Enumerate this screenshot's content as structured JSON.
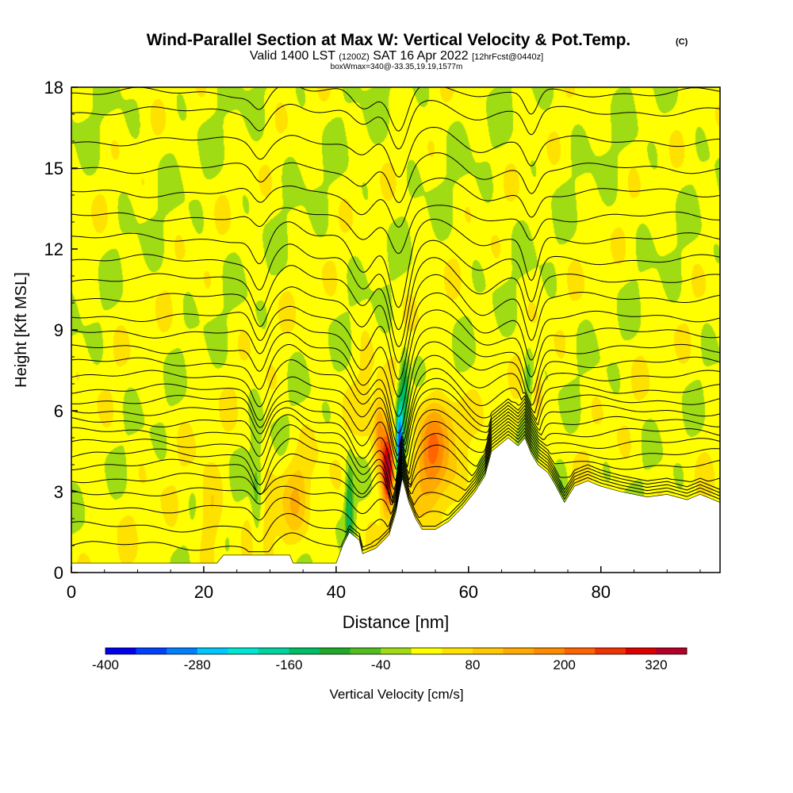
{
  "header": {
    "title": "Wind-Parallel Section at Max W: Vertical Velocity & Pot.Temp.",
    "copyright": "(C)",
    "valid_a": "Valid 1400 LST",
    "valid_b": "(1200Z)",
    "valid_c": "SAT 16 Apr 2022",
    "valid_d": "[12hrFcst@0440z]",
    "subtitle": "boxWmax=340@-33.35,19.19,1577m"
  },
  "chart_data": {
    "type": "heatmap",
    "xlabel": "Distance [nm]",
    "ylabel": "Height [Kft MSL]",
    "xlim": [
      0,
      98
    ],
    "ylim": [
      0,
      18
    ],
    "x_ticks": [
      "0",
      "20",
      "40",
      "60",
      "80"
    ],
    "x_tick_values": [
      0,
      20,
      40,
      60,
      80
    ],
    "y_ticks": [
      "0",
      "3",
      "6",
      "9",
      "12",
      "15",
      "18"
    ],
    "y_tick_values": [
      0,
      3,
      6,
      9,
      12,
      15,
      18
    ],
    "grid": false,
    "colorbar": {
      "label": "Vertical Velocity [cm/s]",
      "range": [
        -400,
        360
      ],
      "step": 40,
      "tick_labels": [
        "-400",
        "-280",
        "-160",
        "-40",
        "80",
        "200",
        "320"
      ],
      "tick_values": [
        -400,
        -280,
        -160,
        -40,
        80,
        200,
        320
      ],
      "colors": [
        "#0000ee",
        "#0040ff",
        "#0080ff",
        "#00c8ff",
        "#00e6d2",
        "#00d2a0",
        "#00be64",
        "#1eaa28",
        "#50be1e",
        "#a0dc14",
        "#ffff00",
        "#ffe100",
        "#ffc800",
        "#ffaa00",
        "#ff8c00",
        "#ff6400",
        "#f03200",
        "#dc0000",
        "#b40028"
      ]
    },
    "terrain_kft": [
      [
        0,
        0.35
      ],
      [
        15,
        0.35
      ],
      [
        22,
        0.35
      ],
      [
        23,
        0.65
      ],
      [
        33,
        0.65
      ],
      [
        33.5,
        0.35
      ],
      [
        40,
        0.35
      ],
      [
        41,
        1.0
      ],
      [
        42,
        1.5
      ],
      [
        43.5,
        1.2
      ],
      [
        44,
        0.7
      ],
      [
        46,
        0.9
      ],
      [
        48,
        1.4
      ],
      [
        49,
        2.2
      ],
      [
        50,
        3.5
      ],
      [
        51,
        2.6
      ],
      [
        52,
        2.0
      ],
      [
        53,
        1.6
      ],
      [
        55,
        1.6
      ],
      [
        57,
        1.9
      ],
      [
        59,
        2.4
      ],
      [
        61,
        3.0
      ],
      [
        62.5,
        3.6
      ],
      [
        63.5,
        4.5
      ],
      [
        66,
        5.0
      ],
      [
        67.5,
        4.7
      ],
      [
        68.5,
        5.0
      ],
      [
        69.5,
        4.4
      ],
      [
        70.5,
        4.0
      ],
      [
        72,
        3.7
      ],
      [
        73,
        3.3
      ],
      [
        74.5,
        2.6
      ],
      [
        76,
        3.2
      ],
      [
        78,
        3.4
      ],
      [
        80,
        3.2
      ],
      [
        83,
        3.0
      ],
      [
        87,
        2.8
      ],
      [
        90,
        2.9
      ],
      [
        93,
        2.7
      ],
      [
        95,
        2.9
      ],
      [
        98,
        2.6
      ]
    ],
    "updrafts": [
      {
        "x": 47.8,
        "z": 3.8,
        "sx": 0.9,
        "sz": 1.5,
        "w": 340
      },
      {
        "x": 46.5,
        "z": 5.2,
        "sx": 0.8,
        "sz": 1.4,
        "w": 140
      },
      {
        "x": 54.5,
        "z": 4.2,
        "sx": 2.6,
        "sz": 1.8,
        "w": 170
      },
      {
        "x": 56.5,
        "z": 5.6,
        "sx": 2.8,
        "sz": 1.1,
        "w": 70
      },
      {
        "x": 34,
        "z": 2.8,
        "sx": 2.2,
        "sz": 1.6,
        "w": 75
      },
      {
        "x": 21,
        "z": 2.2,
        "sx": 1.8,
        "sz": 1.4,
        "w": 70
      },
      {
        "x": 30,
        "z": 2.2,
        "sx": 1.6,
        "sz": 1.4,
        "w": 45
      },
      {
        "x": 70.5,
        "z": 6.6,
        "sx": 0.7,
        "sz": 0.8,
        "w": 90
      },
      {
        "x": 44.5,
        "z": 6.5,
        "sx": 1.5,
        "sz": 2.0,
        "w": 35
      }
    ],
    "downdrafts": [
      {
        "x": 49.6,
        "z": 4.6,
        "sx": 0.5,
        "sz": 1.8,
        "w": -360
      },
      {
        "x": 50.3,
        "z": 6.8,
        "sx": 0.6,
        "sz": 1.2,
        "w": -160
      },
      {
        "x": 42.0,
        "z": 2.4,
        "sx": 0.6,
        "sz": 1.6,
        "w": -140
      },
      {
        "x": 69.0,
        "z": 7.2,
        "sx": 0.7,
        "sz": 1.0,
        "w": -90
      },
      {
        "x": 28.0,
        "z": 3.0,
        "sx": 0.8,
        "sz": 2.4,
        "w": -70
      },
      {
        "x": 65.5,
        "z": 4.0,
        "sx": 1.2,
        "sz": 1.2,
        "w": -60
      },
      {
        "x": 74.0,
        "z": 3.2,
        "sx": 1.2,
        "sz": 1.0,
        "w": -50
      }
    ],
    "isentrope_bases_kft": [
      1.0,
      1.7,
      2.4,
      3.0,
      3.5,
      4.0,
      4.4,
      4.8,
      5.2,
      5.6,
      6.0,
      6.4,
      6.8,
      7.3,
      7.8,
      8.3,
      8.9,
      9.5,
      10.2,
      10.9,
      11.6,
      12.4,
      13.2,
      14.1,
      15.0,
      16.0,
      17.1,
      17.8
    ],
    "isentrope_perturbations": [
      {
        "x": 49.5,
        "sx": 1.8,
        "a": -2.6
      },
      {
        "x": 44,
        "sx": 2.2,
        "a": -1.2
      },
      {
        "x": 69.5,
        "sx": 1.4,
        "a": -1.6
      },
      {
        "x": 28.5,
        "sx": 1.5,
        "a": -1.0
      },
      {
        "x": 33,
        "sx": 2.5,
        "a": 0.5
      },
      {
        "x": 55,
        "sx": 4,
        "a": 0.8
      },
      {
        "x": 62,
        "sx": 3,
        "a": -0.5
      }
    ]
  }
}
